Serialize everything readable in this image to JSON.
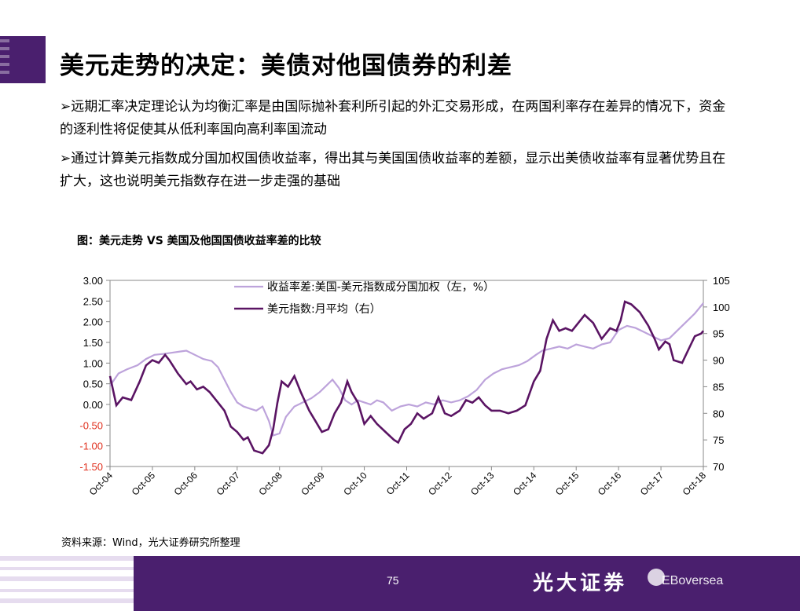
{
  "slide": {
    "title": "美元走势的决定：美债对他国债券的利差",
    "bullets": [
      "➢远期汇率决定理论认为均衡汇率是由国际抛补套利所引起的外汇交易形成，在两国利率存在差异的情况下，资金的逐利性将促使其从低利率国向高利率国流动",
      "➢通过计算美元指数成分国加权国债收益率，得出其与美国国债收益率的差额，显示出美债收益率有显著优势且在扩大，这也说明美元指数存在进一步走强的基础"
    ],
    "chart_caption": "图：美元走势 VS 美国及他国国债收益率差的比较",
    "source": "资料来源：Wind，光大证券研究所整理",
    "page_number": "75",
    "brand": "光大证券",
    "brand_en": "EBoversea"
  },
  "colors": {
    "purple": "#4a1f6e",
    "spread_line": "#bda3db",
    "usd_line": "#5a1463",
    "negative_tick": "#e0301e"
  },
  "chart_data": {
    "type": "line",
    "x_categories": [
      "Oct-04",
      "Oct-05",
      "Oct-06",
      "Oct-07",
      "Oct-08",
      "Oct-09",
      "Oct-10",
      "Oct-11",
      "Oct-12",
      "Oct-13",
      "Oct-14",
      "Oct-15",
      "Oct-16",
      "Oct-17",
      "Oct-18"
    ],
    "x_range": [
      2004.75,
      2018.75
    ],
    "y_left": {
      "ticks": [
        "3.00",
        "2.50",
        "2.00",
        "1.50",
        "1.00",
        "0.50",
        "0.00",
        "-0.50",
        "-1.00",
        "-1.50"
      ],
      "range": [
        -1.5,
        3.0
      ]
    },
    "y_right": {
      "ticks": [
        "105",
        "100",
        "95",
        "90",
        "85",
        "80",
        "75",
        "70"
      ],
      "range": [
        70,
        105
      ]
    },
    "legend": {
      "position": "top-center",
      "entries": [
        "收益率差:美国-美元指数成分国加权（左，%）",
        "美元指数:月平均（右）"
      ]
    },
    "series": [
      {
        "name": "收益率差:美国-美元指数成分国加权（左，%）",
        "axis": "left",
        "points": [
          [
            2004.75,
            0.45
          ],
          [
            2004.95,
            0.75
          ],
          [
            2005.15,
            0.85
          ],
          [
            2005.4,
            0.95
          ],
          [
            2005.6,
            1.1
          ],
          [
            2005.8,
            1.2
          ],
          [
            2006.0,
            1.22
          ],
          [
            2006.2,
            1.25
          ],
          [
            2006.4,
            1.28
          ],
          [
            2006.55,
            1.3
          ],
          [
            2006.75,
            1.2
          ],
          [
            2006.95,
            1.1
          ],
          [
            2007.15,
            1.05
          ],
          [
            2007.3,
            0.9
          ],
          [
            2007.45,
            0.6
          ],
          [
            2007.6,
            0.3
          ],
          [
            2007.75,
            0.05
          ],
          [
            2007.9,
            -0.05
          ],
          [
            2008.05,
            -0.1
          ],
          [
            2008.2,
            -0.15
          ],
          [
            2008.35,
            -0.05
          ],
          [
            2008.5,
            -0.4
          ],
          [
            2008.6,
            -0.75
          ],
          [
            2008.75,
            -0.7
          ],
          [
            2008.9,
            -0.3
          ],
          [
            2009.1,
            -0.05
          ],
          [
            2009.3,
            0.05
          ],
          [
            2009.5,
            0.15
          ],
          [
            2009.7,
            0.3
          ],
          [
            2009.85,
            0.45
          ],
          [
            2010.0,
            0.6
          ],
          [
            2010.15,
            0.4
          ],
          [
            2010.3,
            0.1
          ],
          [
            2010.45,
            0.0
          ],
          [
            2010.6,
            0.1
          ],
          [
            2010.75,
            0.05
          ],
          [
            2010.9,
            0.0
          ],
          [
            2011.05,
            0.1
          ],
          [
            2011.2,
            0.05
          ],
          [
            2011.4,
            -0.15
          ],
          [
            2011.6,
            -0.05
          ],
          [
            2011.8,
            0.0
          ],
          [
            2012.0,
            -0.05
          ],
          [
            2012.2,
            0.05
          ],
          [
            2012.4,
            0.0
          ],
          [
            2012.6,
            0.1
          ],
          [
            2012.8,
            0.05
          ],
          [
            2013.0,
            0.1
          ],
          [
            2013.2,
            0.2
          ],
          [
            2013.4,
            0.35
          ],
          [
            2013.6,
            0.6
          ],
          [
            2013.8,
            0.75
          ],
          [
            2014.0,
            0.85
          ],
          [
            2014.2,
            0.9
          ],
          [
            2014.4,
            0.95
          ],
          [
            2014.6,
            1.05
          ],
          [
            2014.8,
            1.2
          ],
          [
            2014.95,
            1.3
          ],
          [
            2015.15,
            1.35
          ],
          [
            2015.35,
            1.4
          ],
          [
            2015.55,
            1.35
          ],
          [
            2015.75,
            1.45
          ],
          [
            2015.95,
            1.4
          ],
          [
            2016.15,
            1.35
          ],
          [
            2016.35,
            1.45
          ],
          [
            2016.55,
            1.5
          ],
          [
            2016.75,
            1.8
          ],
          [
            2016.95,
            1.9
          ],
          [
            2017.15,
            1.85
          ],
          [
            2017.35,
            1.75
          ],
          [
            2017.55,
            1.65
          ],
          [
            2017.75,
            1.55
          ],
          [
            2017.95,
            1.6
          ],
          [
            2018.15,
            1.8
          ],
          [
            2018.35,
            2.0
          ],
          [
            2018.55,
            2.2
          ],
          [
            2018.75,
            2.45
          ]
        ]
      },
      {
        "name": "美元指数:月平均（右）",
        "axis": "right",
        "points": [
          [
            2004.75,
            87
          ],
          [
            2004.9,
            81.5
          ],
          [
            2005.05,
            83
          ],
          [
            2005.25,
            82.5
          ],
          [
            2005.45,
            86
          ],
          [
            2005.6,
            89
          ],
          [
            2005.75,
            90
          ],
          [
            2005.9,
            89.5
          ],
          [
            2006.05,
            91
          ],
          [
            2006.15,
            90
          ],
          [
            2006.35,
            87.5
          ],
          [
            2006.55,
            85.5
          ],
          [
            2006.65,
            86
          ],
          [
            2006.8,
            84.5
          ],
          [
            2006.95,
            85
          ],
          [
            2007.1,
            84
          ],
          [
            2007.3,
            82
          ],
          [
            2007.45,
            80.5
          ],
          [
            2007.6,
            77.5
          ],
          [
            2007.75,
            76.5
          ],
          [
            2007.9,
            75
          ],
          [
            2008.0,
            75.5
          ],
          [
            2008.15,
            73
          ],
          [
            2008.35,
            72.5
          ],
          [
            2008.5,
            74
          ],
          [
            2008.6,
            77
          ],
          [
            2008.7,
            82
          ],
          [
            2008.8,
            86
          ],
          [
            2008.95,
            85
          ],
          [
            2009.1,
            87
          ],
          [
            2009.25,
            84
          ],
          [
            2009.45,
            80.5
          ],
          [
            2009.6,
            78.5
          ],
          [
            2009.75,
            76.5
          ],
          [
            2009.9,
            77
          ],
          [
            2010.05,
            80
          ],
          [
            2010.2,
            82
          ],
          [
            2010.35,
            86
          ],
          [
            2010.45,
            84
          ],
          [
            2010.6,
            82
          ],
          [
            2010.75,
            78
          ],
          [
            2010.9,
            79.5
          ],
          [
            2011.05,
            78
          ],
          [
            2011.25,
            76.5
          ],
          [
            2011.45,
            75
          ],
          [
            2011.55,
            74.5
          ],
          [
            2011.7,
            77
          ],
          [
            2011.85,
            78
          ],
          [
            2012.0,
            80
          ],
          [
            2012.15,
            79
          ],
          [
            2012.35,
            80
          ],
          [
            2012.5,
            83
          ],
          [
            2012.65,
            80
          ],
          [
            2012.8,
            79.5
          ],
          [
            2013.0,
            80.5
          ],
          [
            2013.15,
            82.5
          ],
          [
            2013.3,
            82
          ],
          [
            2013.45,
            83
          ],
          [
            2013.6,
            81.5
          ],
          [
            2013.75,
            80.5
          ],
          [
            2013.95,
            80.5
          ],
          [
            2014.15,
            80
          ],
          [
            2014.35,
            80.5
          ],
          [
            2014.55,
            81.5
          ],
          [
            2014.75,
            86
          ],
          [
            2014.9,
            88
          ],
          [
            2015.05,
            94
          ],
          [
            2015.2,
            97.5
          ],
          [
            2015.35,
            95.5
          ],
          [
            2015.5,
            96
          ],
          [
            2015.65,
            95.5
          ],
          [
            2015.8,
            97
          ],
          [
            2015.95,
            98.5
          ],
          [
            2016.15,
            97
          ],
          [
            2016.35,
            94
          ],
          [
            2016.55,
            96
          ],
          [
            2016.7,
            95.5
          ],
          [
            2016.8,
            97.5
          ],
          [
            2016.9,
            101
          ],
          [
            2017.05,
            100.5
          ],
          [
            2017.25,
            99
          ],
          [
            2017.45,
            96.5
          ],
          [
            2017.6,
            94
          ],
          [
            2017.7,
            92
          ],
          [
            2017.85,
            93.5
          ],
          [
            2017.95,
            93
          ],
          [
            2018.05,
            90
          ],
          [
            2018.25,
            89.5
          ],
          [
            2018.4,
            92
          ],
          [
            2018.55,
            94.5
          ],
          [
            2018.7,
            95
          ],
          [
            2018.75,
            95.5
          ]
        ]
      }
    ]
  }
}
